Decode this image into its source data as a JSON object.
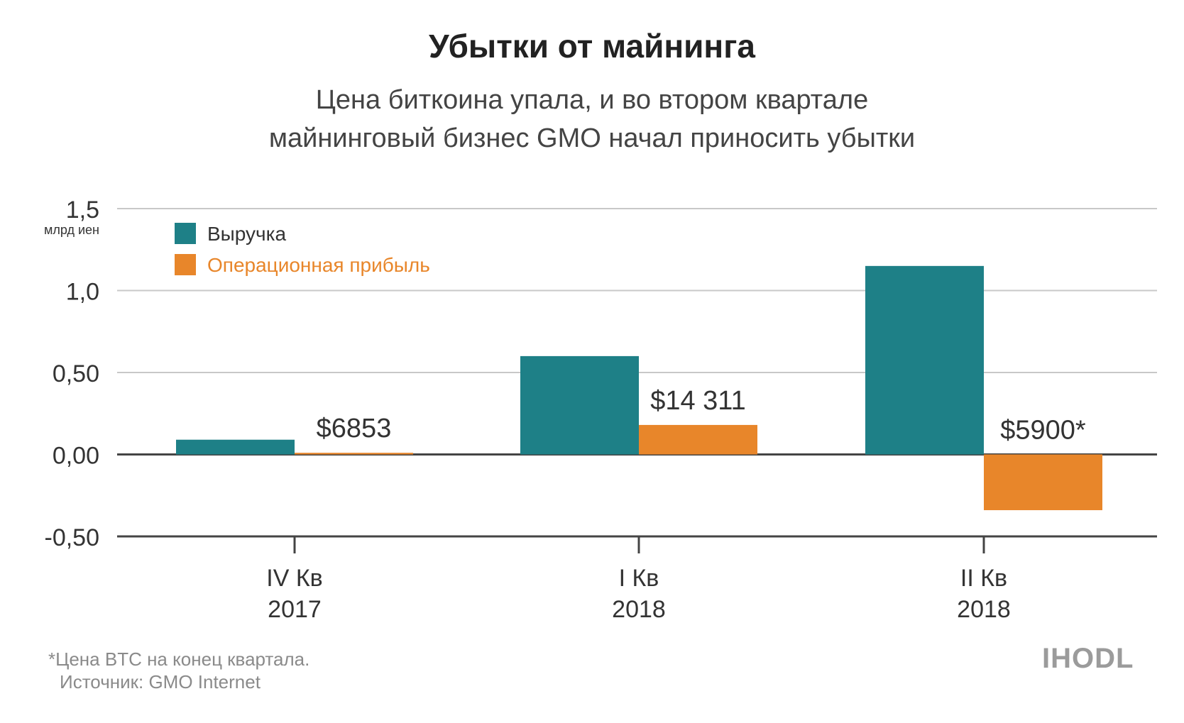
{
  "chart_data": {
    "type": "bar",
    "title": "Убытки от майнинга",
    "subtitle_lines": [
      "Цена биткоина упала, и во втором квартале",
      "майнинговый бизнес GMO начал приносить убытки"
    ],
    "y_unit_label": "млрд иен",
    "ylim": [
      -0.5,
      1.5
    ],
    "y_ticks": [
      {
        "value": 1.5,
        "label": "1,5"
      },
      {
        "value": 1.0,
        "label": "1,0"
      },
      {
        "value": 0.5,
        "label": "0,50"
      },
      {
        "value": 0.0,
        "label": "0,00"
      },
      {
        "value": -0.5,
        "label": "-0,50"
      }
    ],
    "categories": [
      {
        "line1": "IV Кв",
        "line2": "2017"
      },
      {
        "line1": "I Кв",
        "line2": "2018"
      },
      {
        "line1": "II Кв",
        "line2": "2018"
      }
    ],
    "series": [
      {
        "name": "Выручка",
        "color": "#1e8087",
        "values": [
          0.09,
          0.6,
          1.15
        ]
      },
      {
        "name": "Операционная прибыль",
        "color": "#e8862a",
        "values": [
          0.01,
          0.18,
          -0.34
        ]
      }
    ],
    "annotations": [
      "$6853",
      "$14 311",
      "$5900*"
    ],
    "legend_position": "top-left",
    "grid": true
  },
  "footnote": "*Цена BTC на конец квартала.",
  "source": "Источник: GMO Internet",
  "logo": "IHODL",
  "colors": {
    "axis": "#444444",
    "grid": "#c8c8c8",
    "legend_orange_text": "#e8862a"
  }
}
